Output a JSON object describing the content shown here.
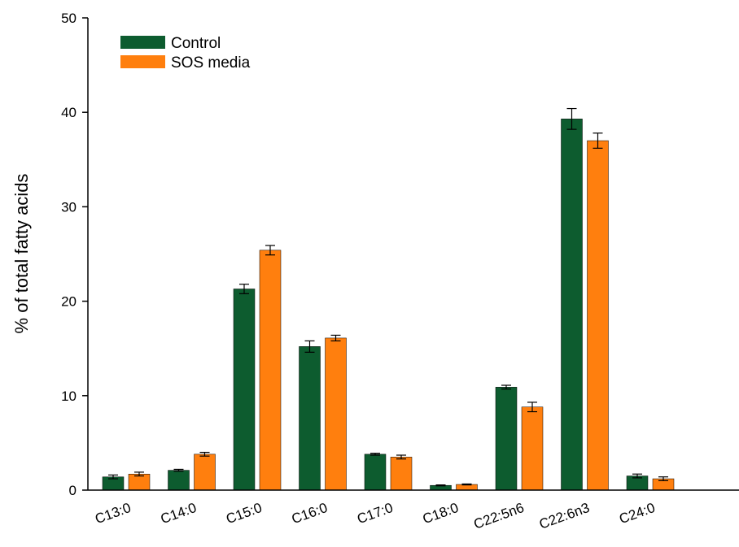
{
  "chart_data": {
    "type": "bar",
    "title": "",
    "xlabel": "",
    "ylabel": "% of total fatty acids",
    "ylim": [
      0,
      50
    ],
    "yticks": [
      0,
      10,
      20,
      30,
      40,
      50
    ],
    "grid": false,
    "legend_position": "top-left",
    "categories": [
      "C13:0",
      "C14:0",
      "C15:0",
      "C16:0",
      "C17:0",
      "C18:0",
      "C22:5n6",
      "C22:6n3",
      "C24:0"
    ],
    "series": [
      {
        "name": "Control",
        "color": "#0d5c2f",
        "values": [
          1.4,
          2.1,
          21.3,
          15.2,
          3.8,
          0.5,
          10.9,
          39.3,
          1.5
        ],
        "errors": [
          0.2,
          0.1,
          0.5,
          0.6,
          0.1,
          0.05,
          0.2,
          1.1,
          0.2
        ]
      },
      {
        "name": "SOS media",
        "color": "#ff7f0e",
        "values": [
          1.7,
          3.8,
          25.4,
          16.1,
          3.5,
          0.6,
          8.8,
          37.0,
          1.2
        ],
        "errors": [
          0.2,
          0.2,
          0.5,
          0.3,
          0.2,
          0.05,
          0.5,
          0.8,
          0.2
        ]
      }
    ]
  }
}
